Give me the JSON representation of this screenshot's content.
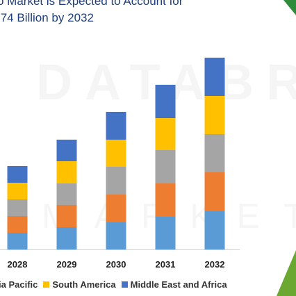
{
  "title": {
    "line1": "o Market is Expected to Account for",
    "line2": ".74 Billion by 2032"
  },
  "watermark": {
    "big": "DATABRI",
    "small": "MARKETS"
  },
  "colors": {
    "north_america": "#5b9bd5",
    "europe": "#ed7d31",
    "asia_pacific": "#a5a5a5",
    "south_america": "#ffc000",
    "middle_east_africa": "#4472c4",
    "accent_green": "#2e8b3a",
    "title_blue": "#1f3f7a"
  },
  "legend": [
    {
      "label": "ia Pacific",
      "color": "#a5a5a5"
    },
    {
      "label": "South America",
      "color": "#ffc000"
    },
    {
      "label": "Middle East and Africa",
      "color": "#4472c4"
    }
  ],
  "chart_data": {
    "type": "bar",
    "stacked": true,
    "categories": [
      "2028",
      "2029",
      "2030",
      "2031",
      "2032"
    ],
    "series": [
      {
        "values": [
          24,
          32,
          39,
          47,
          55
        ],
        "color": "#5b9bd5"
      },
      {
        "values": [
          24,
          32,
          40,
          48,
          56
        ],
        "color": "#ed7d31"
      },
      {
        "values": [
          24,
          31,
          40,
          48,
          55
        ],
        "color": "#a5a5a5"
      },
      {
        "name": "South America",
        "values": [
          24,
          32,
          39,
          46,
          55
        ],
        "color": "#ffc000"
      },
      {
        "name": "Middle East and Africa",
        "values": [
          24,
          31,
          40,
          48,
          55
        ],
        "color": "#4472c4"
      }
    ],
    "ylim": [
      0,
      290
    ],
    "grid": false,
    "legend_position": "bottom"
  }
}
